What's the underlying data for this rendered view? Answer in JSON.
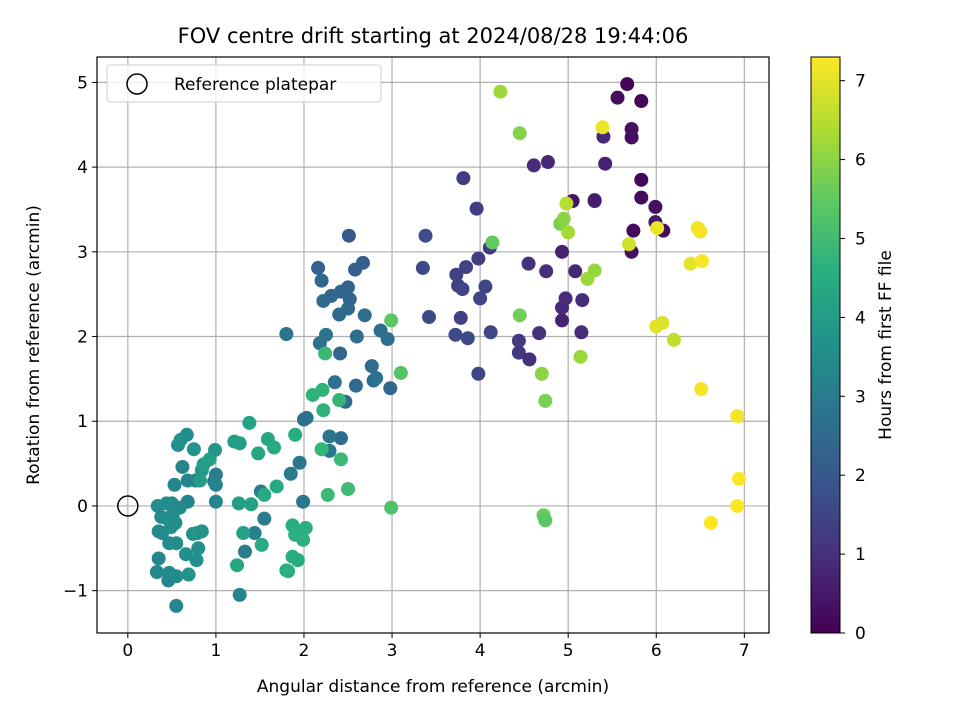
{
  "chart_data": {
    "type": "scatter",
    "title": "FOV centre drift starting at 2024/08/28 19:44:06",
    "xlabel": "Angular distance from reference (arcmin)",
    "ylabel": "Rotation from reference (arcmin)",
    "xlim": [
      -0.35,
      7.28
    ],
    "ylim": [
      -1.5,
      5.3
    ],
    "xticks": [
      "0",
      "1",
      "2",
      "3",
      "4",
      "5",
      "6",
      "7"
    ],
    "yticks": [
      "−1",
      "0",
      "1",
      "2",
      "3",
      "4",
      "5"
    ],
    "grid": true,
    "legend": {
      "position": "upper-left",
      "label": "Reference platepar"
    },
    "reference_point": {
      "x": 0,
      "y": 0
    },
    "colorbar": {
      "label": "Hours from first FF file",
      "range": [
        0,
        7.3
      ],
      "ticks": [
        "0",
        "1",
        "2",
        "3",
        "4",
        "5",
        "6",
        "7"
      ],
      "colormap": "viridis"
    },
    "points": [
      {
        "x": 5.67,
        "y": 4.98,
        "h": 0.1
      },
      {
        "x": 5.56,
        "y": 4.82,
        "h": 0.2
      },
      {
        "x": 5.83,
        "y": 4.78,
        "h": 0.15
      },
      {
        "x": 5.72,
        "y": 4.35,
        "h": 0.25
      },
      {
        "x": 5.72,
        "y": 4.45,
        "h": 0.35
      },
      {
        "x": 5.83,
        "y": 3.85,
        "h": 0.1
      },
      {
        "x": 5.83,
        "y": 3.64,
        "h": 0.2
      },
      {
        "x": 5.99,
        "y": 3.53,
        "h": 0.3
      },
      {
        "x": 5.99,
        "y": 3.35,
        "h": 0.45
      },
      {
        "x": 6.08,
        "y": 3.25,
        "h": 0.25
      },
      {
        "x": 5.74,
        "y": 3.25,
        "h": 0.2
      },
      {
        "x": 5.72,
        "y": 3.0,
        "h": 0.35
      },
      {
        "x": 5.05,
        "y": 3.6,
        "h": 0.4
      },
      {
        "x": 5.3,
        "y": 3.61,
        "h": 0.6
      },
      {
        "x": 5.3,
        "y": 3.6,
        "h": 0.55
      },
      {
        "x": 5.42,
        "y": 4.04,
        "h": 0.7
      },
      {
        "x": 5.4,
        "y": 4.36,
        "h": 0.8
      },
      {
        "x": 4.77,
        "y": 4.06,
        "h": 0.8
      },
      {
        "x": 4.61,
        "y": 4.02,
        "h": 0.9
      },
      {
        "x": 4.93,
        "y": 3.0,
        "h": 0.7
      },
      {
        "x": 5.08,
        "y": 2.77,
        "h": 0.8
      },
      {
        "x": 5.16,
        "y": 2.43,
        "h": 0.9
      },
      {
        "x": 4.97,
        "y": 2.45,
        "h": 0.9
      },
      {
        "x": 4.93,
        "y": 2.34,
        "h": 0.85
      },
      {
        "x": 4.93,
        "y": 2.19,
        "h": 0.7
      },
      {
        "x": 5.15,
        "y": 2.05,
        "h": 0.9
      },
      {
        "x": 4.75,
        "y": 2.77,
        "h": 0.95
      },
      {
        "x": 4.55,
        "y": 2.86,
        "h": 1.0
      },
      {
        "x": 4.67,
        "y": 2.04,
        "h": 1.0
      },
      {
        "x": 4.44,
        "y": 1.95,
        "h": 1.2
      },
      {
        "x": 4.44,
        "y": 1.81,
        "h": 1.2
      },
      {
        "x": 4.56,
        "y": 1.73,
        "h": 1.0
      },
      {
        "x": 4.11,
        "y": 3.05,
        "h": 1.2
      },
      {
        "x": 3.96,
        "y": 3.51,
        "h": 1.3
      },
      {
        "x": 3.81,
        "y": 3.87,
        "h": 1.3
      },
      {
        "x": 3.98,
        "y": 2.92,
        "h": 1.3
      },
      {
        "x": 3.84,
        "y": 2.82,
        "h": 1.4
      },
      {
        "x": 3.73,
        "y": 2.73,
        "h": 1.4
      },
      {
        "x": 3.75,
        "y": 2.6,
        "h": 1.35
      },
      {
        "x": 3.8,
        "y": 2.56,
        "h": 1.5
      },
      {
        "x": 4.06,
        "y": 2.59,
        "h": 1.5
      },
      {
        "x": 4.0,
        "y": 2.45,
        "h": 1.5
      },
      {
        "x": 3.78,
        "y": 2.22,
        "h": 1.4
      },
      {
        "x": 3.72,
        "y": 2.02,
        "h": 1.6
      },
      {
        "x": 3.86,
        "y": 1.98,
        "h": 1.6
      },
      {
        "x": 4.12,
        "y": 2.05,
        "h": 1.5
      },
      {
        "x": 3.98,
        "y": 1.56,
        "h": 1.5
      },
      {
        "x": 3.42,
        "y": 2.23,
        "h": 1.6
      },
      {
        "x": 3.35,
        "y": 2.81,
        "h": 1.6
      },
      {
        "x": 3.38,
        "y": 3.19,
        "h": 1.7
      },
      {
        "x": 2.51,
        "y": 3.19,
        "h": 2.1
      },
      {
        "x": 2.67,
        "y": 2.87,
        "h": 2.2
      },
      {
        "x": 2.58,
        "y": 2.79,
        "h": 2.2
      },
      {
        "x": 2.16,
        "y": 2.81,
        "h": 2.2
      },
      {
        "x": 2.2,
        "y": 2.66,
        "h": 2.4
      },
      {
        "x": 2.5,
        "y": 2.58,
        "h": 2.3
      },
      {
        "x": 2.42,
        "y": 2.53,
        "h": 2.3
      },
      {
        "x": 2.31,
        "y": 2.48,
        "h": 2.4
      },
      {
        "x": 2.52,
        "y": 2.44,
        "h": 2.4
      },
      {
        "x": 2.22,
        "y": 2.42,
        "h": 2.5
      },
      {
        "x": 2.5,
        "y": 2.33,
        "h": 2.5
      },
      {
        "x": 2.4,
        "y": 2.26,
        "h": 2.5
      },
      {
        "x": 2.69,
        "y": 2.25,
        "h": 2.6
      },
      {
        "x": 2.87,
        "y": 2.07,
        "h": 2.6
      },
      {
        "x": 2.25,
        "y": 2.02,
        "h": 2.8
      },
      {
        "x": 2.6,
        "y": 2.0,
        "h": 2.6
      },
      {
        "x": 2.95,
        "y": 1.97,
        "h": 2.6
      },
      {
        "x": 2.18,
        "y": 1.92,
        "h": 2.7
      },
      {
        "x": 1.8,
        "y": 2.03,
        "h": 2.8
      },
      {
        "x": 2.41,
        "y": 1.8,
        "h": 2.4
      },
      {
        "x": 2.77,
        "y": 1.65,
        "h": 2.5
      },
      {
        "x": 2.79,
        "y": 1.48,
        "h": 2.6
      },
      {
        "x": 2.59,
        "y": 1.42,
        "h": 2.5
      },
      {
        "x": 2.82,
        "y": 1.51,
        "h": 2.7
      },
      {
        "x": 2.98,
        "y": 1.39,
        "h": 2.4
      },
      {
        "x": 2.47,
        "y": 1.23,
        "h": 2.6
      },
      {
        "x": 2.35,
        "y": 1.46,
        "h": 2.7
      },
      {
        "x": 2.42,
        "y": 0.8,
        "h": 2.6
      },
      {
        "x": 2.29,
        "y": 0.82,
        "h": 2.8
      },
      {
        "x": 2.03,
        "y": 1.04,
        "h": 2.8
      },
      {
        "x": 2.0,
        "y": 1.02,
        "h": 2.7
      },
      {
        "x": 2.29,
        "y": 0.65,
        "h": 2.9
      },
      {
        "x": 1.95,
        "y": 0.51,
        "h": 2.9
      },
      {
        "x": 1.85,
        "y": 0.38,
        "h": 3.0
      },
      {
        "x": 1.99,
        "y": 0.05,
        "h": 2.9
      },
      {
        "x": 1.51,
        "y": 0.17,
        "h": 3.0
      },
      {
        "x": 1.55,
        "y": -0.15,
        "h": 3.0
      },
      {
        "x": 1.44,
        "y": -0.32,
        "h": 3.1
      },
      {
        "x": 1.33,
        "y": -0.54,
        "h": 3.1
      },
      {
        "x": 1.27,
        "y": -1.05,
        "h": 3.3
      },
      {
        "x": 0.98,
        "y": 0.29,
        "h": 3.0
      },
      {
        "x": 1.0,
        "y": 0.37,
        "h": 3.1
      },
      {
        "x": 1.0,
        "y": 0.25,
        "h": 3.2
      },
      {
        "x": 1.0,
        "y": 0.05,
        "h": 3.3
      },
      {
        "x": 0.77,
        "y": 0.3,
        "h": 3.2
      },
      {
        "x": 0.68,
        "y": 0.3,
        "h": 3.3
      },
      {
        "x": 0.62,
        "y": 0.46,
        "h": 3.2
      },
      {
        "x": 0.53,
        "y": 0.25,
        "h": 3.3
      },
      {
        "x": 0.68,
        "y": 0.05,
        "h": 3.3
      },
      {
        "x": 0.5,
        "y": 0.03,
        "h": 3.4
      },
      {
        "x": 0.34,
        "y": 0.0,
        "h": 3.5
      },
      {
        "x": 0.44,
        "y": 0.03,
        "h": 3.5
      },
      {
        "x": 0.59,
        "y": -0.02,
        "h": 3.4
      },
      {
        "x": 0.51,
        "y": -0.1,
        "h": 3.5
      },
      {
        "x": 0.38,
        "y": -0.13,
        "h": 3.4
      },
      {
        "x": 0.46,
        "y": -0.16,
        "h": 3.6
      },
      {
        "x": 0.54,
        "y": -0.2,
        "h": 3.5
      },
      {
        "x": 0.35,
        "y": -0.3,
        "h": 3.5
      },
      {
        "x": 0.39,
        "y": -0.32,
        "h": 3.4
      },
      {
        "x": 0.49,
        "y": -0.25,
        "h": 3.6
      },
      {
        "x": 0.47,
        "y": -0.44,
        "h": 3.5
      },
      {
        "x": 0.55,
        "y": -0.44,
        "h": 3.6
      },
      {
        "x": 0.35,
        "y": -0.62,
        "h": 3.3
      },
      {
        "x": 0.33,
        "y": -0.78,
        "h": 3.4
      },
      {
        "x": 0.46,
        "y": -0.88,
        "h": 3.3
      },
      {
        "x": 0.47,
        "y": -0.79,
        "h": 3.4
      },
      {
        "x": 0.55,
        "y": -0.83,
        "h": 3.5
      },
      {
        "x": 0.55,
        "y": -1.18,
        "h": 3.3
      },
      {
        "x": 0.66,
        "y": -0.57,
        "h": 3.6
      },
      {
        "x": 0.78,
        "y": -0.64,
        "h": 3.6
      },
      {
        "x": 0.69,
        "y": -0.81,
        "h": 3.7
      },
      {
        "x": 0.8,
        "y": -0.5,
        "h": 3.6
      },
      {
        "x": 0.74,
        "y": -0.33,
        "h": 3.7
      },
      {
        "x": 0.79,
        "y": -0.32,
        "h": 3.8
      },
      {
        "x": 0.84,
        "y": -0.3,
        "h": 3.7
      },
      {
        "x": 0.57,
        "y": 0.72,
        "h": 3.6
      },
      {
        "x": 0.6,
        "y": 0.78,
        "h": 3.7
      },
      {
        "x": 0.67,
        "y": 0.84,
        "h": 3.6
      },
      {
        "x": 0.75,
        "y": 0.67,
        "h": 3.7
      },
      {
        "x": 0.99,
        "y": 0.66,
        "h": 3.8
      },
      {
        "x": 0.84,
        "y": 0.42,
        "h": 3.9
      },
      {
        "x": 0.86,
        "y": 0.49,
        "h": 4.0
      },
      {
        "x": 0.82,
        "y": 0.3,
        "h": 4.0
      },
      {
        "x": 0.93,
        "y": 0.55,
        "h": 4.1
      },
      {
        "x": 1.21,
        "y": 0.76,
        "h": 4.0
      },
      {
        "x": 1.27,
        "y": 0.74,
        "h": 4.1
      },
      {
        "x": 1.38,
        "y": 0.98,
        "h": 4.2
      },
      {
        "x": 1.48,
        "y": 0.62,
        "h": 4.3
      },
      {
        "x": 1.59,
        "y": 0.79,
        "h": 4.3
      },
      {
        "x": 1.66,
        "y": 0.69,
        "h": 4.4
      },
      {
        "x": 1.26,
        "y": 0.03,
        "h": 4.1
      },
      {
        "x": 1.4,
        "y": 0.02,
        "h": 4.2
      },
      {
        "x": 1.31,
        "y": -0.32,
        "h": 4.2
      },
      {
        "x": 1.24,
        "y": -0.7,
        "h": 4.3
      },
      {
        "x": 1.55,
        "y": 0.13,
        "h": 4.4
      },
      {
        "x": 1.69,
        "y": 0.23,
        "h": 4.4
      },
      {
        "x": 1.52,
        "y": -0.46,
        "h": 4.4
      },
      {
        "x": 1.87,
        "y": -0.23,
        "h": 4.5
      },
      {
        "x": 1.9,
        "y": -0.34,
        "h": 4.6
      },
      {
        "x": 1.87,
        "y": -0.6,
        "h": 4.6
      },
      {
        "x": 1.93,
        "y": -0.64,
        "h": 4.5
      },
      {
        "x": 1.99,
        "y": -0.4,
        "h": 4.6
      },
      {
        "x": 2.02,
        "y": -0.26,
        "h": 4.6
      },
      {
        "x": 1.8,
        "y": -0.76,
        "h": 4.5
      },
      {
        "x": 1.82,
        "y": -0.77,
        "h": 4.6
      },
      {
        "x": 1.9,
        "y": 0.84,
        "h": 4.5
      },
      {
        "x": 2.1,
        "y": 1.31,
        "h": 4.7
      },
      {
        "x": 2.21,
        "y": 1.37,
        "h": 4.7
      },
      {
        "x": 2.22,
        "y": 1.13,
        "h": 4.7
      },
      {
        "x": 2.4,
        "y": 1.25,
        "h": 4.8
      },
      {
        "x": 2.2,
        "y": 0.67,
        "h": 4.8
      },
      {
        "x": 2.42,
        "y": 0.55,
        "h": 4.9
      },
      {
        "x": 2.27,
        "y": 0.13,
        "h": 4.9
      },
      {
        "x": 2.5,
        "y": 0.2,
        "h": 5.0
      },
      {
        "x": 2.24,
        "y": 1.8,
        "h": 4.9
      },
      {
        "x": 2.99,
        "y": 2.19,
        "h": 5.4
      },
      {
        "x": 3.1,
        "y": 1.57,
        "h": 5.3
      },
      {
        "x": 2.99,
        "y": -0.02,
        "h": 5.2
      },
      {
        "x": 4.14,
        "y": 3.11,
        "h": 5.5
      },
      {
        "x": 4.23,
        "y": 4.89,
        "h": 6.2
      },
      {
        "x": 4.45,
        "y": 4.4,
        "h": 5.9
      },
      {
        "x": 4.45,
        "y": 2.25,
        "h": 5.7
      },
      {
        "x": 4.7,
        "y": 1.56,
        "h": 6.0
      },
      {
        "x": 4.74,
        "y": 1.24,
        "h": 5.8
      },
      {
        "x": 4.72,
        "y": -0.11,
        "h": 5.6
      },
      {
        "x": 4.74,
        "y": -0.17,
        "h": 5.4
      },
      {
        "x": 4.91,
        "y": 3.33,
        "h": 5.8
      },
      {
        "x": 4.95,
        "y": 3.39,
        "h": 6.0
      },
      {
        "x": 4.98,
        "y": 3.57,
        "h": 6.5
      },
      {
        "x": 5.0,
        "y": 3.23,
        "h": 6.3
      },
      {
        "x": 5.14,
        "y": 1.76,
        "h": 6.2
      },
      {
        "x": 5.22,
        "y": 2.68,
        "h": 6.2
      },
      {
        "x": 5.3,
        "y": 2.78,
        "h": 6.1
      },
      {
        "x": 5.39,
        "y": 4.47,
        "h": 7.1
      },
      {
        "x": 5.69,
        "y": 3.09,
        "h": 6.8
      },
      {
        "x": 6.01,
        "y": 3.28,
        "h": 7.1
      },
      {
        "x": 6.0,
        "y": 2.12,
        "h": 7.0
      },
      {
        "x": 6.07,
        "y": 2.16,
        "h": 6.9
      },
      {
        "x": 6.2,
        "y": 1.96,
        "h": 6.6
      },
      {
        "x": 6.39,
        "y": 2.86,
        "h": 7.0
      },
      {
        "x": 6.47,
        "y": 3.28,
        "h": 7.2
      },
      {
        "x": 6.5,
        "y": 3.24,
        "h": 7.2
      },
      {
        "x": 6.52,
        "y": 2.89,
        "h": 7.2
      },
      {
        "x": 6.51,
        "y": 1.38,
        "h": 7.2
      },
      {
        "x": 6.92,
        "y": 1.06,
        "h": 7.2
      },
      {
        "x": 6.94,
        "y": 0.32,
        "h": 7.25
      },
      {
        "x": 6.92,
        "y": 0.0,
        "h": 7.3
      },
      {
        "x": 6.62,
        "y": -0.2,
        "h": 7.3
      }
    ]
  }
}
